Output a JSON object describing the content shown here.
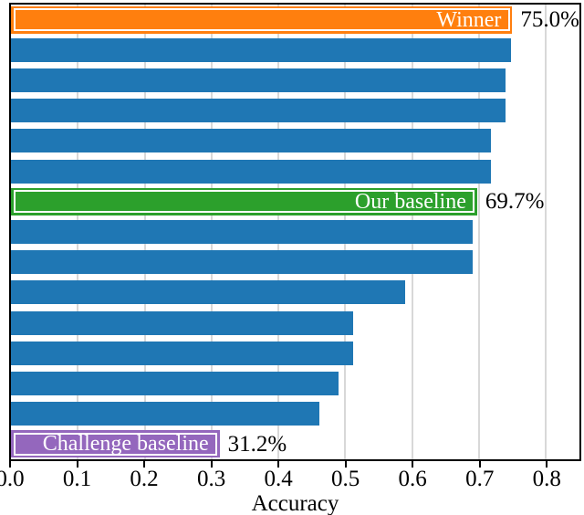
{
  "chart_data": {
    "type": "bar",
    "orientation": "horizontal",
    "title": "",
    "xlabel": "Accuracy",
    "ylabel": "",
    "xlim": [
      0,
      0.85
    ],
    "grid": true,
    "grid_color": "#b0b0b0",
    "frame_color": "#000000",
    "xticks": [
      {
        "value": 0.0,
        "label": "0.0"
      },
      {
        "value": 0.1,
        "label": "0.1"
      },
      {
        "value": 0.2,
        "label": "0.2"
      },
      {
        "value": 0.3,
        "label": "0.3"
      },
      {
        "value": 0.4,
        "label": "0.4"
      },
      {
        "value": 0.5,
        "label": "0.5"
      },
      {
        "value": 0.6,
        "label": "0.6"
      },
      {
        "value": 0.7,
        "label": "0.7"
      },
      {
        "value": 0.8,
        "label": "0.8"
      }
    ],
    "colors": {
      "default_bar": "#1f77b4",
      "winner_bar": "#ff7f0e",
      "our_baseline_bar": "#2ca02c",
      "challenge_baseline_bar": "#9467bd",
      "bar_label_text": "#ffffff",
      "value_label_text": "#000000"
    },
    "bars": [
      {
        "value": 0.75,
        "color": "#ff7f0e",
        "label": "Winner",
        "value_label": "75.0%"
      },
      {
        "value": 0.748,
        "color": "#1f77b4"
      },
      {
        "value": 0.739,
        "color": "#1f77b4"
      },
      {
        "value": 0.739,
        "color": "#1f77b4"
      },
      {
        "value": 0.717,
        "color": "#1f77b4"
      },
      {
        "value": 0.718,
        "color": "#1f77b4"
      },
      {
        "value": 0.697,
        "color": "#2ca02c",
        "label": "Our baseline",
        "value_label": "69.7%"
      },
      {
        "value": 0.69,
        "color": "#1f77b4"
      },
      {
        "value": 0.69,
        "color": "#1f77b4"
      },
      {
        "value": 0.59,
        "color": "#1f77b4"
      },
      {
        "value": 0.512,
        "color": "#1f77b4"
      },
      {
        "value": 0.511,
        "color": "#1f77b4"
      },
      {
        "value": 0.49,
        "color": "#1f77b4"
      },
      {
        "value": 0.461,
        "color": "#1f77b4"
      },
      {
        "value": 0.312,
        "color": "#9467bd",
        "label": "Challenge baseline",
        "value_label": "31.2%"
      }
    ]
  }
}
